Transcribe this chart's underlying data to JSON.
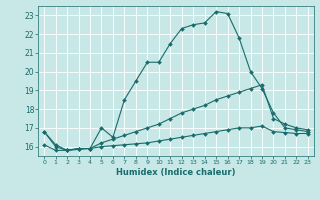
{
  "title": "",
  "xlabel": "Humidex (Indice chaleur)",
  "bg_color": "#c8e8e8",
  "line_color": "#1a6b6b",
  "grid_color": "#ffffff",
  "xlim": [
    -0.5,
    23.5
  ],
  "ylim": [
    15.5,
    23.5
  ],
  "yticks": [
    16,
    17,
    18,
    19,
    20,
    21,
    22,
    23
  ],
  "xticks": [
    0,
    1,
    2,
    3,
    4,
    5,
    6,
    7,
    8,
    9,
    10,
    11,
    12,
    13,
    14,
    15,
    16,
    17,
    18,
    19,
    20,
    21,
    22,
    23
  ],
  "series1_x": [
    0,
    1,
    2,
    3,
    4,
    5,
    6,
    7,
    8,
    9,
    10,
    11,
    12,
    13,
    14,
    15,
    16,
    17,
    18,
    19,
    20,
    21,
    22,
    23
  ],
  "series1_y": [
    16.8,
    16.1,
    15.8,
    15.9,
    15.9,
    17.0,
    16.5,
    18.5,
    19.5,
    20.5,
    20.5,
    21.5,
    22.3,
    22.5,
    22.6,
    23.2,
    23.1,
    21.8,
    20.0,
    19.1,
    17.8,
    17.0,
    16.9,
    16.8
  ],
  "series2_x": [
    0,
    1,
    2,
    3,
    4,
    5,
    6,
    7,
    8,
    9,
    10,
    11,
    12,
    13,
    14,
    15,
    16,
    17,
    18,
    19,
    20,
    21,
    22,
    23
  ],
  "series2_y": [
    16.1,
    15.8,
    15.8,
    15.85,
    15.9,
    16.0,
    16.05,
    16.1,
    16.15,
    16.2,
    16.3,
    16.4,
    16.5,
    16.6,
    16.7,
    16.8,
    16.9,
    17.0,
    17.0,
    17.1,
    16.8,
    16.75,
    16.7,
    16.7
  ],
  "series3_x": [
    0,
    1,
    2,
    3,
    4,
    5,
    6,
    7,
    8,
    9,
    10,
    11,
    12,
    13,
    14,
    15,
    16,
    17,
    18,
    19,
    20,
    21,
    22,
    23
  ],
  "series3_y": [
    16.8,
    16.0,
    15.8,
    15.9,
    15.9,
    16.2,
    16.4,
    16.6,
    16.8,
    17.0,
    17.2,
    17.5,
    17.8,
    18.0,
    18.2,
    18.5,
    18.7,
    18.9,
    19.1,
    19.3,
    17.5,
    17.2,
    17.0,
    16.9
  ]
}
